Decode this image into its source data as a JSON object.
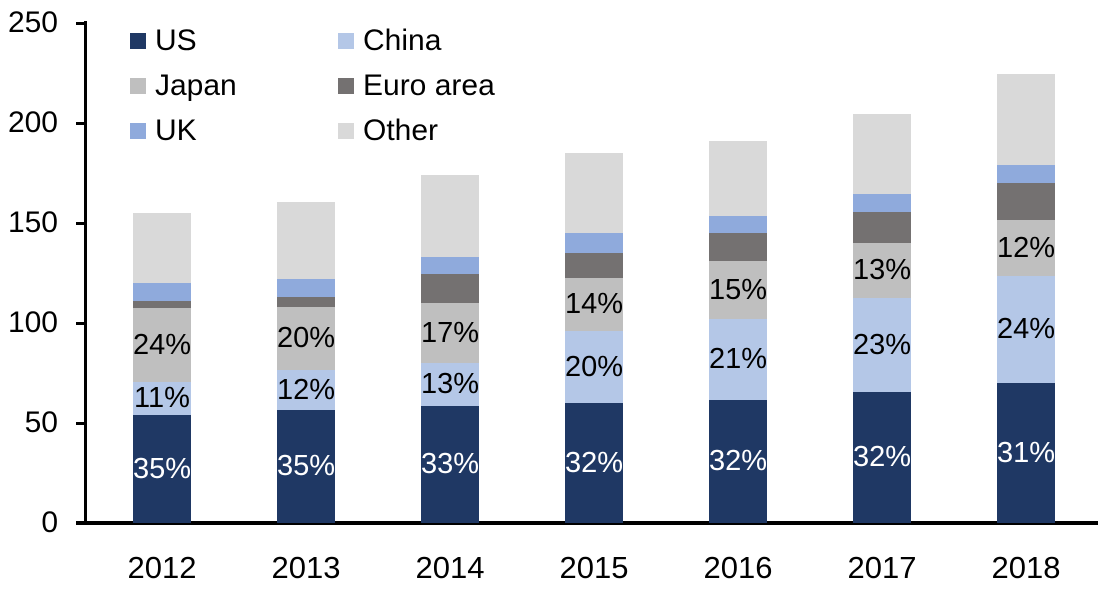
{
  "chart_data": {
    "type": "bar",
    "stacked": true,
    "title": "",
    "xlabel": "",
    "ylabel": "",
    "categories": [
      "2012",
      "2013",
      "2014",
      "2015",
      "2016",
      "2017",
      "2018"
    ],
    "series": [
      {
        "name": "US",
        "color": "#1f3864",
        "values": [
          54,
          56.5,
          58.5,
          60,
          61.5,
          65.5,
          70
        ]
      },
      {
        "name": "China",
        "color": "#b4c7e7",
        "values": [
          16.5,
          20,
          21.5,
          36,
          40.5,
          47,
          53.5
        ]
      },
      {
        "name": "Japan",
        "color": "#bfbfbf",
        "values": [
          37,
          31.5,
          30,
          26.5,
          29,
          27.5,
          28
        ]
      },
      {
        "name": "Euro area",
        "color": "#747171",
        "values": [
          3.5,
          5,
          14.5,
          12.5,
          14,
          15.5,
          18.5
        ]
      },
      {
        "name": "UK",
        "color": "#8faadc",
        "values": [
          9,
          9,
          8.5,
          10,
          8.5,
          9,
          9
        ]
      },
      {
        "name": "Other",
        "color": "#d9d9d9",
        "values": [
          35,
          38.5,
          41,
          40,
          37.5,
          40,
          45.5
        ]
      }
    ],
    "totals": [
      155,
      160.5,
      174,
      185,
      191,
      204.5,
      224.5
    ],
    "segment_labels": [
      {
        "series": "US",
        "text_color": "#ffffff",
        "values": [
          "35%",
          "35%",
          "33%",
          "32%",
          "32%",
          "32%",
          "31%"
        ]
      },
      {
        "series": "China",
        "text_color": "#000000",
        "values": [
          "11%",
          "12%",
          "13%",
          "20%",
          "21%",
          "23%",
          "24%"
        ]
      },
      {
        "series": "Japan",
        "text_color": "#000000",
        "values": [
          "24%",
          "20%",
          "17%",
          "14%",
          "15%",
          "13%",
          "12%"
        ]
      }
    ],
    "y_ticks": [
      "0",
      "50",
      "100",
      "150",
      "200",
      "250"
    ],
    "ylim": [
      0,
      250
    ],
    "grid": false,
    "legend_position": "top-left"
  },
  "legend": {
    "items": [
      {
        "label": "US",
        "color": "#1f3864"
      },
      {
        "label": "China",
        "color": "#b4c7e7"
      },
      {
        "label": "Japan",
        "color": "#bfbfbf"
      },
      {
        "label": "Euro area",
        "color": "#747171"
      },
      {
        "label": "UK",
        "color": "#8faadc"
      },
      {
        "label": "Other",
        "color": "#d9d9d9"
      }
    ]
  }
}
